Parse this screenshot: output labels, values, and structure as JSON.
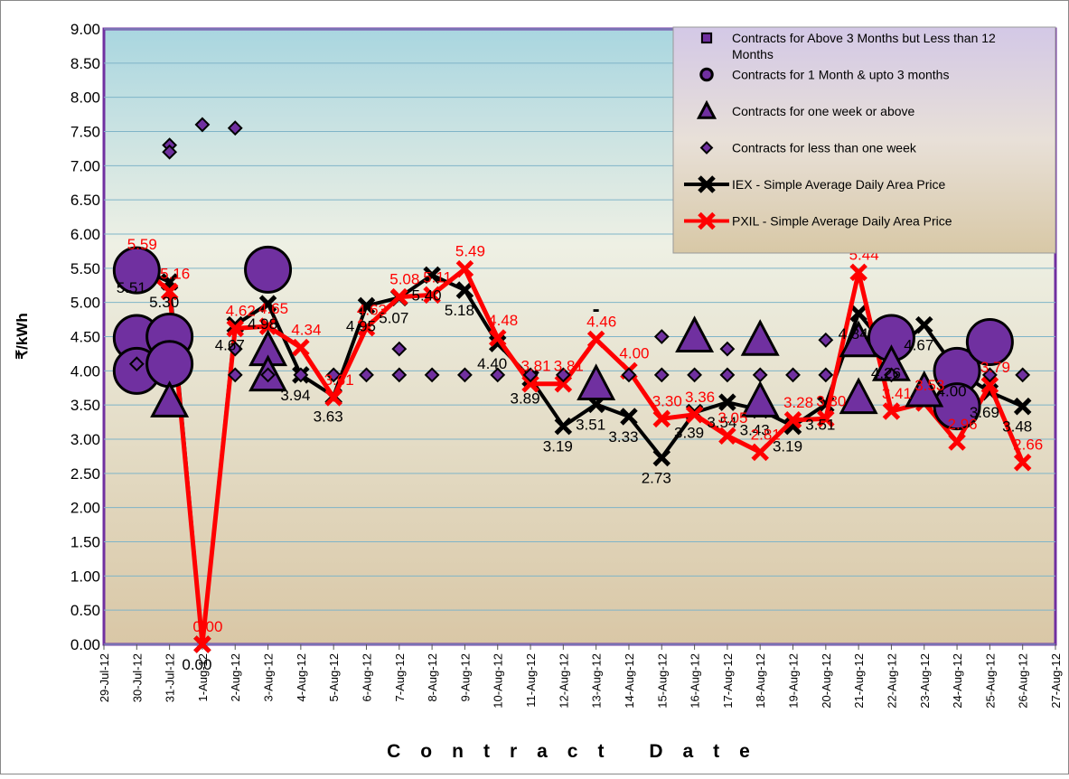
{
  "chart_data": {
    "type": "line",
    "y_label": "₹/kWh",
    "x_label": "Contract Date",
    "categories": [
      "29-Jul-12",
      "30-Jul-12",
      "31-Jul-12",
      "1-Aug-12",
      "2-Aug-12",
      "3-Aug-12",
      "4-Aug-12",
      "5-Aug-12",
      "6-Aug-12",
      "7-Aug-12",
      "8-Aug-12",
      "9-Aug-12",
      "10-Aug-12",
      "11-Aug-12",
      "12-Aug-12",
      "13-Aug-12",
      "14-Aug-12",
      "15-Aug-12",
      "16-Aug-12",
      "17-Aug-12",
      "18-Aug-12",
      "19-Aug-12",
      "20-Aug-12",
      "21-Aug-12",
      "22-Aug-12",
      "23-Aug-12",
      "24-Aug-12",
      "25-Aug-12",
      "26-Aug-12",
      "27-Aug-12"
    ],
    "ylim": [
      0,
      9
    ],
    "yticks": [
      {
        "value": 0,
        "label": "0.00"
      },
      {
        "value": 0.5,
        "label": "0.50"
      },
      {
        "value": 1,
        "label": "1.00"
      },
      {
        "value": 1.5,
        "label": "1.50"
      },
      {
        "value": 2,
        "label": "2.00"
      },
      {
        "value": 2.5,
        "label": "2.50"
      },
      {
        "value": 3,
        "label": "3.00"
      },
      {
        "value": 3.5,
        "label": "3.50"
      },
      {
        "value": 4,
        "label": "4.00"
      },
      {
        "value": 4.5,
        "label": "4.50"
      },
      {
        "value": 5,
        "label": "5.00"
      },
      {
        "value": 5.5,
        "label": "5.50"
      },
      {
        "value": 6,
        "label": "6.00"
      },
      {
        "value": 6.5,
        "label": "6.50"
      },
      {
        "value": 7,
        "label": "7.00"
      },
      {
        "value": 7.5,
        "label": "7.50"
      },
      {
        "value": 8,
        "label": "8.00"
      },
      {
        "value": 8.5,
        "label": "8.50"
      },
      {
        "value": 9,
        "label": "9.00"
      }
    ],
    "grid": true,
    "legend": "top-right",
    "markers": [
      {
        "name": "Contracts for Above 3 Months but Less than 12 Months",
        "marker": "square",
        "color": "#7030a0",
        "x": [],
        "values": []
      },
      {
        "name": "Contracts for 1 Month & upto 3 months",
        "marker": "bubble",
        "color": "#7030a0",
        "x": [
          "30-Jul-12",
          "30-Jul-12",
          "30-Jul-12",
          "31-Jul-12",
          "31-Jul-12",
          "3-Aug-12",
          "22-Aug-12",
          "24-Aug-12",
          "24-Aug-12",
          "25-Aug-12"
        ],
        "values": [
          5.47,
          4.48,
          4.0,
          4.5,
          4.1,
          5.48,
          4.48,
          4.0,
          3.48,
          4.42
        ]
      },
      {
        "name": "Contracts for one week or above",
        "marker": "triangle",
        "color": "#7030a0",
        "x": [
          "31-Jul-12",
          "3-Aug-12",
          "3-Aug-12",
          "13-Aug-12",
          "16-Aug-12",
          "18-Aug-12",
          "18-Aug-12",
          "21-Aug-12",
          "21-Aug-12",
          "22-Aug-12",
          "23-Aug-12"
        ],
        "values": [
          3.55,
          4.3,
          3.93,
          3.8,
          4.5,
          4.45,
          3.55,
          4.43,
          3.6,
          4.08,
          3.7
        ]
      },
      {
        "name": "Contracts for less than one week",
        "marker": "diamond",
        "color": "#7030a0",
        "x": [
          "30-Jul-12",
          "31-Jul-12",
          "31-Jul-12",
          "1-Aug-12",
          "2-Aug-12",
          "2-Aug-12",
          "2-Aug-12",
          "3-Aug-12",
          "4-Aug-12",
          "5-Aug-12",
          "6-Aug-12",
          "7-Aug-12",
          "7-Aug-12",
          "8-Aug-12",
          "9-Aug-12",
          "10-Aug-12",
          "11-Aug-12",
          "12-Aug-12",
          "14-Aug-12",
          "15-Aug-12",
          "15-Aug-12",
          "16-Aug-12",
          "17-Aug-12",
          "17-Aug-12",
          "18-Aug-12",
          "19-Aug-12",
          "20-Aug-12",
          "20-Aug-12",
          "22-Aug-12",
          "25-Aug-12",
          "26-Aug-12"
        ],
        "values": [
          4.1,
          7.3,
          7.2,
          7.6,
          7.55,
          4.32,
          3.94,
          3.94,
          3.94,
          3.94,
          3.94,
          3.94,
          4.32,
          3.94,
          3.94,
          3.94,
          3.94,
          3.94,
          3.94,
          3.94,
          4.5,
          3.94,
          3.94,
          4.32,
          3.94,
          3.94,
          3.94,
          4.45,
          3.94,
          3.94,
          3.94
        ]
      }
    ],
    "series": [
      {
        "name": "IEX - Simple Average Daily Area Price",
        "color": "#000000",
        "values": [
          null,
          5.51,
          5.3,
          0,
          4.67,
          4.98,
          3.94,
          3.63,
          4.95,
          5.07,
          5.4,
          5.18,
          4.4,
          3.89,
          3.19,
          3.51,
          3.33,
          2.73,
          3.39,
          3.54,
          3.43,
          3.19,
          3.51,
          4.84,
          4.26,
          4.67,
          4.0,
          3.69,
          3.48,
          null
        ],
        "value_labels": [
          null,
          "5.51",
          "5.30",
          "0.00",
          "4.67",
          "4.98",
          "3.94",
          "3.63",
          "4.95",
          "5.07",
          "5.40",
          "5.18",
          "4.40",
          "3.89",
          "3.19",
          "3.51",
          "3.33",
          "2.73",
          "3.39",
          "3.54",
          "3.43",
          "3.19",
          "3.51",
          "4.84",
          "4.26",
          "4.67",
          "4.00",
          "3.69",
          "3.48",
          null
        ]
      },
      {
        "name": "PXIL - Simple Average Daily Area Price",
        "color": "#ff0000",
        "values": [
          null,
          5.59,
          5.16,
          0,
          4.62,
          4.65,
          4.34,
          3.61,
          4.63,
          5.08,
          5.11,
          5.49,
          4.48,
          3.81,
          3.81,
          4.46,
          4.0,
          3.3,
          3.36,
          3.05,
          2.81,
          3.28,
          3.3,
          5.44,
          3.41,
          3.53,
          2.96,
          3.79,
          2.66,
          null
        ],
        "value_labels": [
          null,
          "5.59",
          "5.16",
          "0.00",
          "4.62",
          "4.65",
          "4.34",
          "3.61",
          "4.63",
          "5.08",
          "5.11",
          "5.49",
          "4.48",
          "3.81",
          "3.81",
          "4.46",
          "4.00",
          "3.30",
          "3.36",
          "3.05",
          "2.81",
          "3.28",
          "3.30",
          "5.44",
          "3.41",
          "3.53",
          "2.96",
          "3.79",
          "2.66",
          null
        ]
      }
    ],
    "annotations": [
      {
        "text": "-",
        "x": "13-Aug-12",
        "y": 4.8
      }
    ]
  }
}
